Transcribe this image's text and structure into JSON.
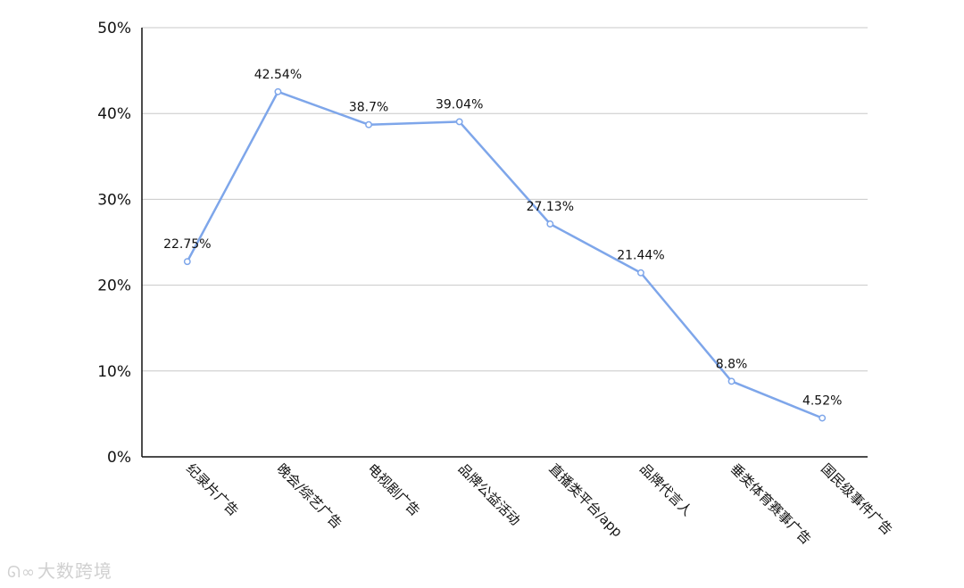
{
  "chart_data": {
    "type": "line",
    "categories": [
      "纪录片广告",
      "晚会/综艺广告",
      "电视剧广告",
      "品牌公益活动",
      "直播类平台/app",
      "品牌代言人",
      "垂类体育赛事广告",
      "国民级事件广告"
    ],
    "values": [
      22.75,
      42.54,
      38.7,
      39.04,
      27.13,
      21.44,
      8.8,
      4.52
    ],
    "data_labels": [
      "22.75%",
      "42.54%",
      "38.7%",
      "39.04%",
      "27.13%",
      "21.44%",
      "8.8%",
      "4.52%"
    ],
    "ylim": [
      0,
      50
    ],
    "yticks": [
      0,
      10,
      20,
      30,
      40,
      50
    ],
    "ytick_labels": [
      "0%",
      "10%",
      "20%",
      "30%",
      "40%",
      "50%"
    ],
    "grid": true,
    "line_color": "#7ea6ea",
    "grid_color": "#c8c8c8",
    "axis_color": "#111111"
  },
  "watermark": {
    "icon": "loop-logo-icon",
    "text": "大数跨境"
  }
}
